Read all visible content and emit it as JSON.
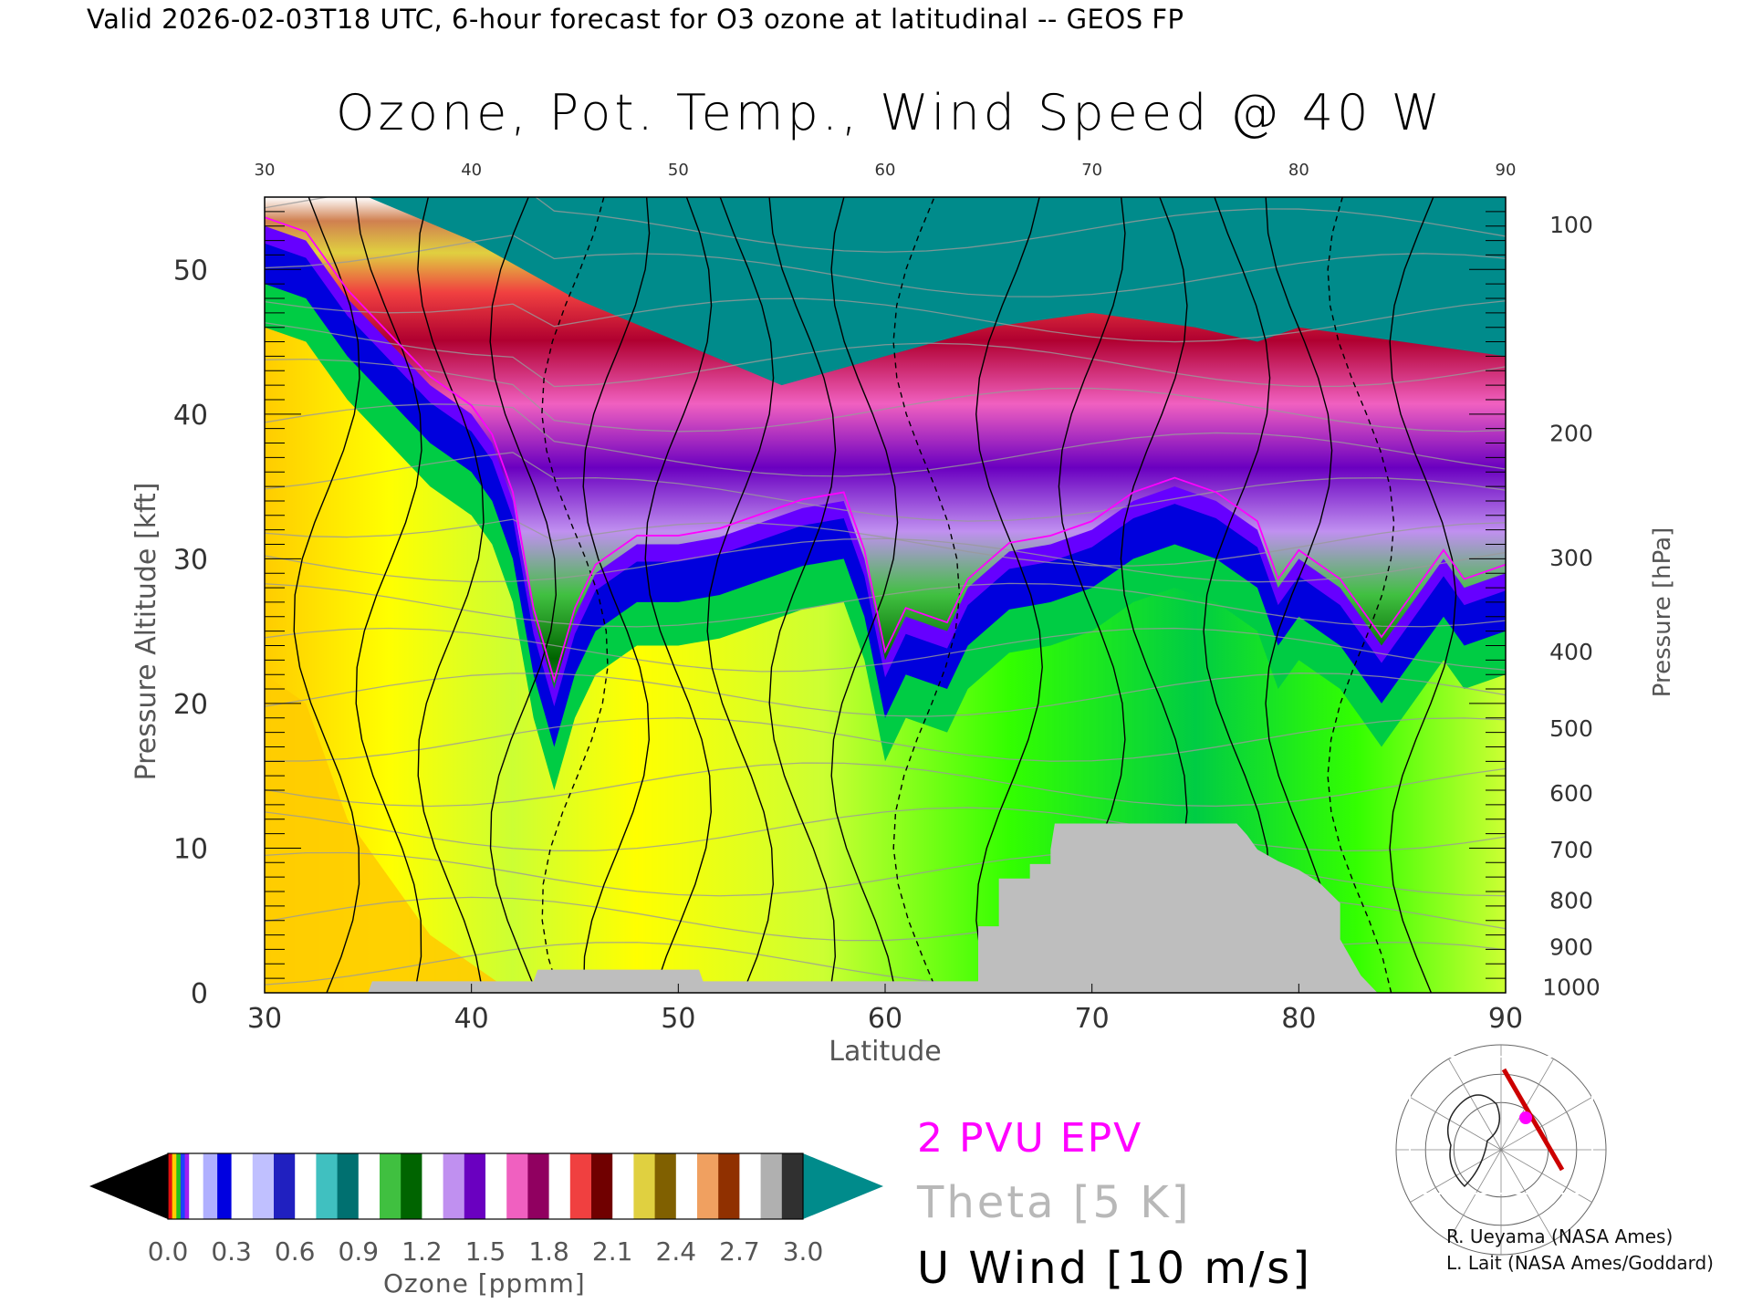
{
  "header": "Valid 2026-02-03T18 UTC, 6-hour forecast for O3 ozone at latitudinal -- GEOS FP",
  "chart_data": {
    "type": "heatmap",
    "title": "Ozone, Pot. Temp., Wind Speed @ 40 W",
    "xlabel": "Latitude",
    "ylabel": "Pressure Altitude [kft]",
    "y2label": "Pressure [hPa]",
    "xlim": [
      30,
      90
    ],
    "ylim": [
      0,
      55
    ],
    "x_ticks": [
      30,
      40,
      50,
      60,
      70,
      80,
      90
    ],
    "top_x_ticks": [
      30,
      40,
      50,
      60,
      70,
      80,
      90
    ],
    "y_ticks": [
      0,
      10,
      20,
      30,
      40,
      50
    ],
    "pressure_ticks": [
      {
        "hpa": "100",
        "kft": 53.1
      },
      {
        "hpa": "200",
        "kft": 38.7
      },
      {
        "hpa": "300",
        "kft": 30.1
      },
      {
        "hpa": "400",
        "kft": 23.6
      },
      {
        "hpa": "500",
        "kft": 18.3
      },
      {
        "hpa": "600",
        "kft": 13.8
      },
      {
        "hpa": "700",
        "kft": 9.9
      },
      {
        "hpa": "800",
        "kft": 6.4
      },
      {
        "hpa": "900",
        "kft": 3.2
      },
      {
        "hpa": "1000",
        "kft": 0.4
      }
    ],
    "tropopause_kft": [
      [
        30,
        53
      ],
      [
        32,
        52
      ],
      [
        34,
        48
      ],
      [
        36,
        45
      ],
      [
        38,
        42
      ],
      [
        40,
        40
      ],
      [
        41,
        38
      ],
      [
        42,
        34
      ],
      [
        43,
        26
      ],
      [
        44,
        21
      ],
      [
        45,
        26
      ],
      [
        46,
        29
      ],
      [
        48,
        31
      ],
      [
        50,
        31
      ],
      [
        52,
        31.5
      ],
      [
        54,
        32.5
      ],
      [
        56,
        33.5
      ],
      [
        58,
        34
      ],
      [
        59,
        30
      ],
      [
        60,
        23
      ],
      [
        61,
        26
      ],
      [
        63,
        25
      ],
      [
        64,
        28
      ],
      [
        66,
        30.5
      ],
      [
        68,
        31
      ],
      [
        70,
        32
      ],
      [
        72,
        34
      ],
      [
        74,
        35
      ],
      [
        76,
        34
      ],
      [
        78,
        32
      ],
      [
        79,
        28
      ],
      [
        80,
        30
      ],
      [
        82,
        28
      ],
      [
        84,
        24
      ],
      [
        86,
        28
      ],
      [
        87,
        30
      ],
      [
        88,
        28
      ],
      [
        90,
        29
      ]
    ],
    "ozone_upper_bands_kft": [
      [
        30,
        55
      ],
      [
        35,
        55
      ],
      [
        40,
        52
      ],
      [
        45,
        48
      ],
      [
        50,
        45
      ],
      [
        55,
        42
      ],
      [
        60,
        44
      ],
      [
        65,
        46
      ],
      [
        70,
        47
      ],
      [
        75,
        46
      ],
      [
        78,
        45
      ],
      [
        80,
        46
      ],
      [
        85,
        45
      ],
      [
        90,
        44
      ]
    ],
    "surface_kft": [
      [
        30,
        0
      ],
      [
        35,
        0
      ],
      [
        35.2,
        0.8
      ],
      [
        43,
        0.8
      ],
      [
        43.2,
        1.6
      ],
      [
        51,
        1.6
      ],
      [
        51.2,
        0.8
      ],
      [
        64.5,
        0.8
      ],
      [
        64.5,
        4.6
      ],
      [
        65.5,
        4.6
      ],
      [
        65.5,
        7.9
      ],
      [
        67,
        7.9
      ],
      [
        67,
        8.9
      ],
      [
        68,
        8.9
      ],
      [
        68,
        9.9
      ],
      [
        68.2,
        11.7
      ],
      [
        77,
        11.7
      ],
      [
        77.5,
        10.9
      ],
      [
        78,
        9.9
      ],
      [
        79,
        9.1
      ],
      [
        80,
        8.5
      ],
      [
        81,
        7.6
      ],
      [
        82,
        6.2
      ],
      [
        82,
        3.7
      ],
      [
        83,
        1.2
      ],
      [
        83.8,
        0
      ],
      [
        90,
        0
      ]
    ],
    "colorbar": {
      "label": "Ozone [ppmm]",
      "ticks": [
        "0.0",
        "0.3",
        "0.6",
        "0.9",
        "1.2",
        "1.5",
        "1.8",
        "2.1",
        "2.4",
        "2.7",
        "3.0"
      ],
      "range": [
        0.0,
        3.0
      ],
      "under_color": "#000000",
      "over_color": "#008b8b",
      "segments": [
        {
          "from": 0.0,
          "to": 0.1,
          "colors": [
            "#e01010",
            "#ffcc00",
            "#20c020",
            "#2040ff",
            "#a020f0"
          ]
        },
        {
          "from": 0.1,
          "to": 0.3,
          "colors": [
            "#ffffff",
            "#b0b0ff",
            "#0000e0"
          ]
        },
        {
          "from": 0.3,
          "to": 0.6,
          "colors": [
            "#ffffff",
            "#c0c0ff",
            "#2020c0"
          ]
        },
        {
          "from": 0.6,
          "to": 0.9,
          "colors": [
            "#ffffff",
            "#40c0c0",
            "#007070"
          ]
        },
        {
          "from": 0.9,
          "to": 1.2,
          "colors": [
            "#ffffff",
            "#40c040",
            "#006400"
          ]
        },
        {
          "from": 1.2,
          "to": 1.5,
          "colors": [
            "#ffffff",
            "#c090f0",
            "#6a00c0"
          ]
        },
        {
          "from": 1.5,
          "to": 1.8,
          "colors": [
            "#ffffff",
            "#f060c0",
            "#900060"
          ]
        },
        {
          "from": 1.8,
          "to": 2.1,
          "colors": [
            "#ffffff",
            "#f04040",
            "#700000"
          ]
        },
        {
          "from": 2.1,
          "to": 2.4,
          "colors": [
            "#ffffff",
            "#e0d040",
            "#806000"
          ]
        },
        {
          "from": 2.4,
          "to": 2.7,
          "colors": [
            "#ffffff",
            "#f0a060",
            "#903000"
          ]
        },
        {
          "from": 2.7,
          "to": 3.0,
          "colors": [
            "#ffffff",
            "#b0b0b0",
            "#303030"
          ]
        }
      ]
    },
    "tropospheric_fill_colors": {
      "very_low": "#ff9900",
      "low": "#ffcc00",
      "mid_low": "#ffff00",
      "mid": "#ccff33",
      "mid_high": "#33ff00",
      "high": "#00cc44",
      "near_tropopause": "#0000dd",
      "tropopause_edge": "#6600ff",
      "stratosphere_low": "#b0b0ff",
      "stratosphere_top": "#008b8b",
      "surface": "#bebebe"
    }
  },
  "legend": {
    "epv": "2 PVU EPV",
    "theta": "Theta [5 K]",
    "u_wind": "U Wind [10 m/s]",
    "epv_color": "#ff00ff",
    "theta_color": "#b8b8b8"
  },
  "credits": {
    "line1": "R. Ueyama (NASA Ames)",
    "line2": "L. Lait (NASA Ames/Goddard)"
  },
  "inset_map": {
    "section_line_color": "#cc0000",
    "marker_color": "#ff00ff"
  }
}
